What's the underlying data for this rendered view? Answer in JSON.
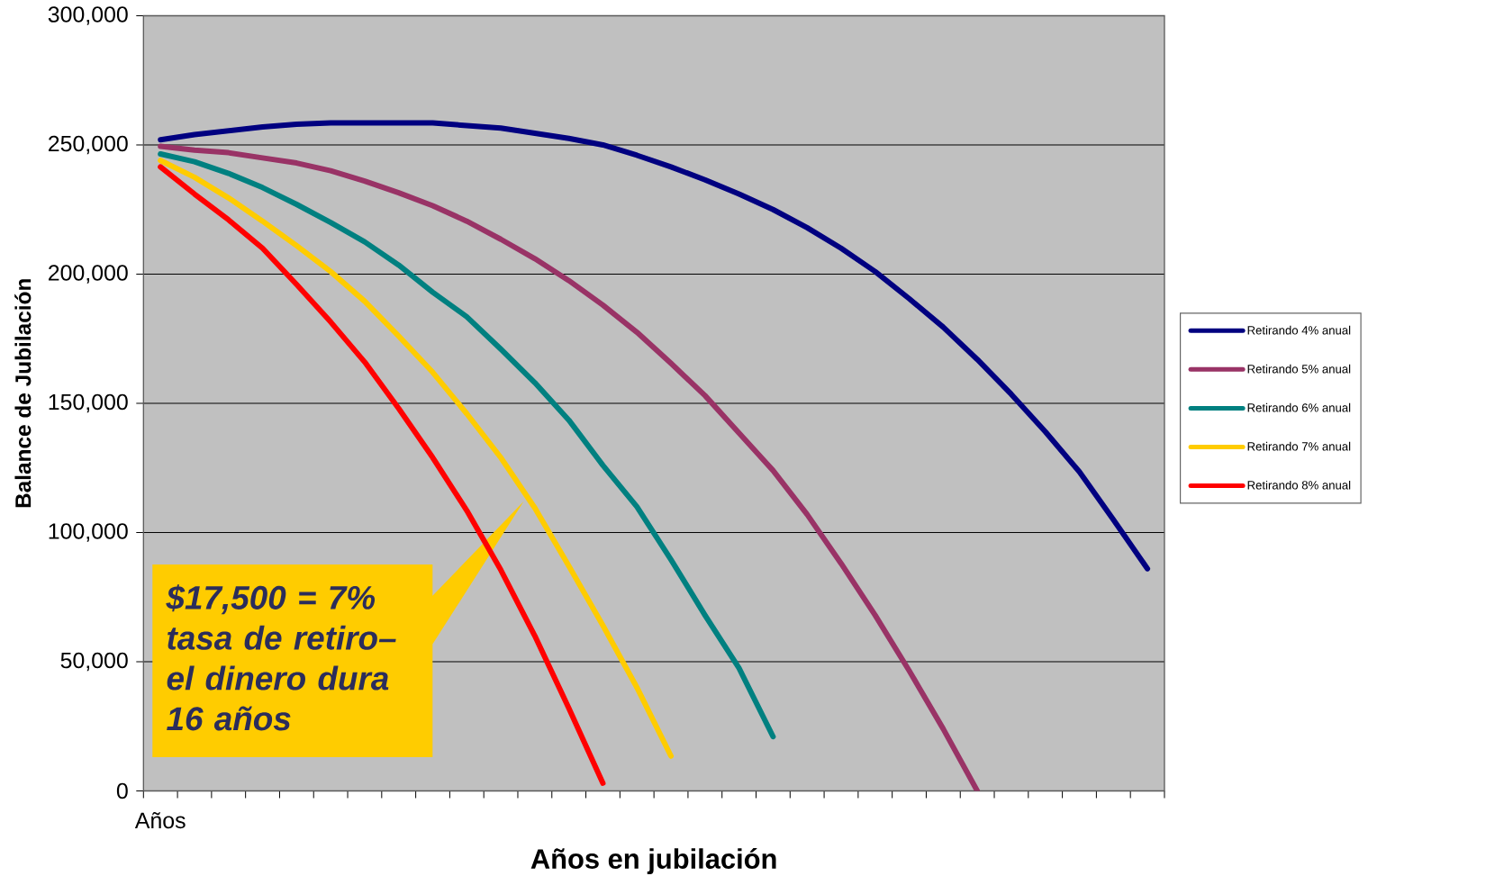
{
  "chart_data": {
    "type": "line",
    "xlabel": "Años en jubilación",
    "ylabel": "Balance de Jubilación",
    "categories": [
      "Años",
      null,
      null,
      null,
      null,
      null,
      null,
      null,
      null,
      null,
      null,
      null,
      null,
      null,
      null,
      null,
      null,
      null,
      null,
      null,
      null,
      null,
      null,
      null,
      null,
      null,
      null,
      null,
      null,
      null
    ],
    "ylim": [
      0,
      300000
    ],
    "yticks": [
      {
        "value": 0,
        "label": "0"
      },
      {
        "value": 50000,
        "label": "50,000"
      },
      {
        "value": 100000,
        "label": "100,000"
      },
      {
        "value": 150000,
        "label": "150,000"
      },
      {
        "value": 200000,
        "label": "200,000"
      },
      {
        "value": 250000,
        "label": "250,000"
      },
      {
        "value": 300000,
        "label": "300,000"
      }
    ],
    "grid": "y",
    "legend": "right",
    "marker": "none",
    "line_style": "solid",
    "annotations": [
      "$17,500 = 7% tasa de retiro– el dinero dura 16 años"
    ],
    "series": [
      {
        "name": "Retirando 4% anual",
        "color": "#000080",
        "values": [
          252000,
          254000,
          255500,
          257000,
          258000,
          258500,
          258500,
          258500,
          258500,
          257500,
          256500,
          254500,
          252500,
          250000,
          246000,
          241500,
          236500,
          231000,
          225000,
          218000,
          210000,
          201000,
          190500,
          179500,
          167000,
          153500,
          139000,
          123500,
          105000,
          86000
        ]
      },
      {
        "name": "Retirando 5% anual",
        "color": "#993366",
        "values": [
          249500,
          248000,
          247000,
          245000,
          243000,
          240000,
          236000,
          231500,
          226500,
          220500,
          213500,
          206000,
          197500,
          188000,
          177500,
          165500,
          153000,
          138500,
          124000,
          107000,
          88000,
          68000,
          46500,
          24000,
          0,
          null,
          null,
          null,
          null,
          null
        ]
      },
      {
        "name": "Retirando 6% anual",
        "color": "#008080",
        "values": [
          246500,
          243500,
          239000,
          233500,
          227000,
          220000,
          212500,
          203500,
          193000,
          183500,
          171000,
          158000,
          143500,
          126000,
          110000,
          89500,
          68000,
          47500,
          21000,
          null,
          null,
          null,
          null,
          null,
          null,
          null,
          null,
          null,
          null,
          null
        ]
      },
      {
        "name": "Retirando 7% anual",
        "color": "#ffcc00",
        "values": [
          244000,
          237500,
          229500,
          220500,
          211000,
          201000,
          189500,
          176000,
          162000,
          146000,
          129000,
          109500,
          87000,
          64000,
          40000,
          13500,
          null,
          null,
          null,
          null,
          null,
          null,
          null,
          null,
          null,
          null,
          null,
          null,
          null,
          null
        ]
      },
      {
        "name": "Retirando 8% anual",
        "color": "#ff0000",
        "values": [
          241500,
          231000,
          221000,
          210000,
          196000,
          181500,
          166000,
          148000,
          129000,
          108500,
          85500,
          60000,
          32000,
          3000,
          null,
          null,
          null,
          null,
          null,
          null,
          null,
          null,
          null,
          null,
          null,
          null,
          null,
          null,
          null,
          null
        ]
      }
    ]
  }
}
